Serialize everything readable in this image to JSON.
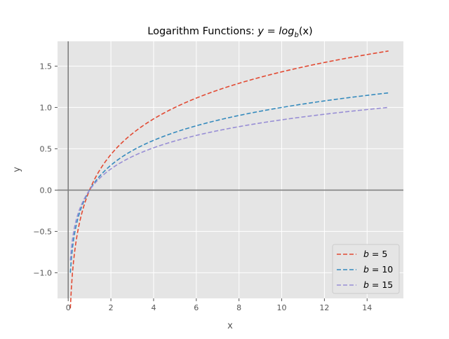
{
  "chart_data": {
    "type": "line",
    "title_main": "Logarithm Functions: ",
    "title_math": {
      "y": "y",
      "eq": " = ",
      "log": "log",
      "sub": "b",
      "arg": "(x)"
    },
    "xlabel": "x",
    "ylabel": "y",
    "xlim": [
      -0.5,
      15.7
    ],
    "ylim": [
      -1.31,
      1.8
    ],
    "x_ticks": [
      0,
      2,
      4,
      6,
      8,
      10,
      12,
      14
    ],
    "x_tick_labels": [
      "0",
      "2",
      "4",
      "6",
      "8",
      "10",
      "12",
      "14"
    ],
    "y_ticks": [
      -1.0,
      -0.5,
      0.0,
      0.5,
      1.0,
      1.5
    ],
    "y_tick_labels": [
      "−1.0",
      "−0.5",
      "0.0",
      "0.5",
      "1.0",
      "1.5"
    ],
    "grid": true,
    "legend_position": "lower-right",
    "reference_lines": {
      "x": 0,
      "y": 0
    },
    "x_range": [
      0.1,
      15.0
    ],
    "series": [
      {
        "base": 5,
        "name": "b = 5",
        "color": "#E24A33",
        "line_style": "dashed"
      },
      {
        "base": 10,
        "name": "b = 10",
        "color": "#348ABD",
        "line_style": "dashed"
      },
      {
        "base": 15,
        "name": "b = 15",
        "color": "#988ED5",
        "line_style": "dashed"
      }
    ]
  }
}
